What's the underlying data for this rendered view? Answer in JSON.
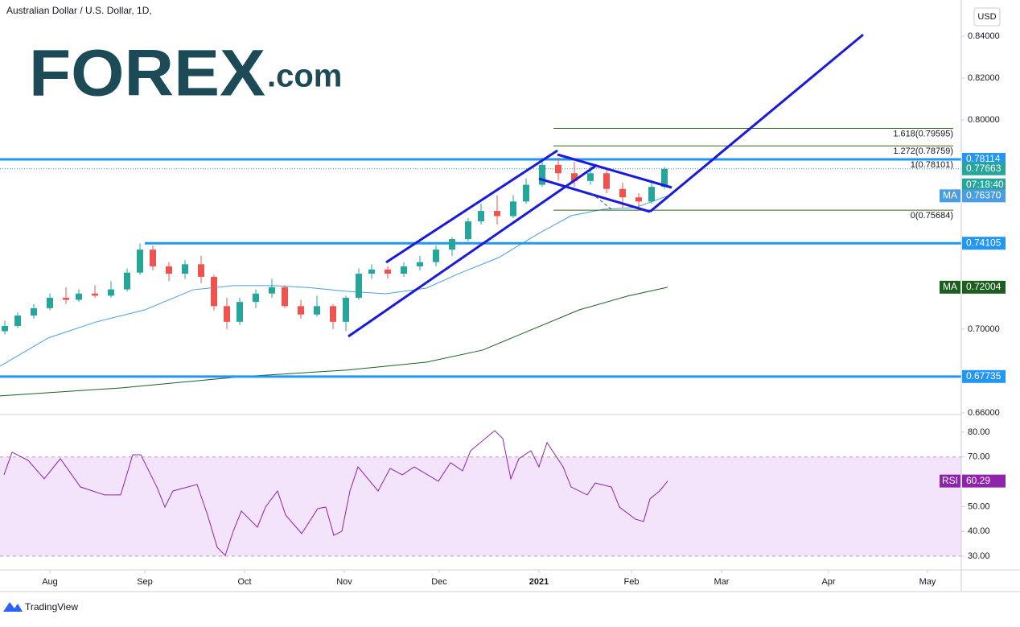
{
  "chart_data": [
    {
      "type": "candlestick",
      "title": "Australian Dollar / U.S. Dollar, 1D,",
      "currency": "USD",
      "logo": {
        "brand": "FOREX",
        "suffix": ".com"
      },
      "up_color": "#26a69a",
      "down_color": "#ef5350",
      "xlim": [
        -15.5,
        283.25
      ],
      "ylim": [
        0.6592,
        0.8573
      ],
      "yticks": [
        {
          "value": 0.84,
          "label": "0.84000"
        },
        {
          "value": 0.82,
          "label": "0.82000"
        },
        {
          "value": 0.8,
          "label": "0.80000"
        },
        {
          "value": 0.7,
          "label": "0.70000"
        },
        {
          "value": 0.66,
          "label": "0.66000"
        }
      ],
      "x": [
        -14,
        -10,
        -5,
        0,
        5,
        9,
        14,
        19,
        24,
        28,
        32,
        37,
        42,
        47,
        51,
        55,
        59,
        64,
        69,
        73,
        78,
        83,
        88,
        92,
        96,
        100,
        105,
        110,
        115,
        120,
        125,
        130,
        134,
        139,
        144,
        148,
        153,
        158,
        163,
        168,
        173,
        178,
        183,
        187,
        191
      ],
      "open": [
        0.699,
        0.7015,
        0.7065,
        0.71,
        0.715,
        0.714,
        0.717,
        0.716,
        0.719,
        0.727,
        0.738,
        0.73,
        0.7265,
        0.731,
        0.725,
        0.711,
        0.7035,
        0.713,
        0.717,
        0.72,
        0.711,
        0.707,
        0.711,
        0.7035,
        0.715,
        0.7265,
        0.7285,
        0.7265,
        0.73,
        0.732,
        0.738,
        0.743,
        0.7515,
        0.7565,
        0.754,
        0.761,
        0.769,
        0.7785,
        0.7745,
        0.7708,
        0.7745,
        0.767,
        0.763,
        0.761,
        0.768
      ],
      "high": [
        0.704,
        0.708,
        0.712,
        0.717,
        0.72,
        0.719,
        0.721,
        0.723,
        0.729,
        0.741,
        0.74,
        0.732,
        0.733,
        0.735,
        0.726,
        0.715,
        0.715,
        0.719,
        0.724,
        0.721,
        0.714,
        0.716,
        0.712,
        0.716,
        0.729,
        0.731,
        0.73,
        0.732,
        0.735,
        0.74,
        0.744,
        0.753,
        0.76,
        0.764,
        0.764,
        0.772,
        0.782,
        0.782,
        0.78,
        0.778,
        0.776,
        0.77,
        0.765,
        0.77,
        0.7775
      ],
      "low": [
        0.6975,
        0.7005,
        0.705,
        0.709,
        0.712,
        0.713,
        0.715,
        0.715,
        0.718,
        0.726,
        0.728,
        0.723,
        0.724,
        0.722,
        0.709,
        0.7,
        0.702,
        0.71,
        0.715,
        0.71,
        0.705,
        0.706,
        0.7,
        0.699,
        0.714,
        0.724,
        0.724,
        0.725,
        0.728,
        0.73,
        0.735,
        0.742,
        0.75,
        0.75,
        0.753,
        0.76,
        0.768,
        0.771,
        0.768,
        0.769,
        0.765,
        0.758,
        0.757,
        0.76,
        0.767
      ],
      "close": [
        0.7015,
        0.7065,
        0.71,
        0.715,
        0.714,
        0.717,
        0.716,
        0.719,
        0.727,
        0.738,
        0.73,
        0.7265,
        0.731,
        0.725,
        0.711,
        0.7035,
        0.713,
        0.717,
        0.72,
        0.711,
        0.707,
        0.711,
        0.7035,
        0.715,
        0.7265,
        0.7285,
        0.7265,
        0.73,
        0.732,
        0.738,
        0.743,
        0.7515,
        0.7565,
        0.754,
        0.761,
        0.769,
        0.7785,
        0.7745,
        0.7708,
        0.7745,
        0.767,
        0.763,
        0.761,
        0.768,
        0.7766
      ],
      "moving_averages": [
        {
          "name": "MA",
          "color": "#4a9de0",
          "x": [
            -15.5,
            -0.5,
            14.5,
            29.5,
            44.5,
            57,
            69.5,
            79.5,
            92,
            104.5,
            117,
            127,
            139.5,
            152,
            162,
            172,
            182,
            192
          ],
          "values": [
            0.6823,
            0.6958,
            0.7035,
            0.7092,
            0.7188,
            0.7208,
            0.7208,
            0.72,
            0.7181,
            0.7169,
            0.7196,
            0.7265,
            0.7342,
            0.7458,
            0.7542,
            0.7573,
            0.7581,
            0.7637
          ],
          "value_labels": [
            null,
            null,
            null,
            null,
            null,
            null,
            null,
            null,
            null,
            null,
            null,
            null,
            null,
            null,
            null,
            null,
            null,
            "0.76370"
          ]
        },
        {
          "name": "MA",
          "color": "#1b5e20",
          "x": [
            -15.5,
            22,
            59.5,
            92,
            117,
            134.5,
            149.5,
            164.5,
            179.5,
            192
          ],
          "values": [
            0.6681,
            0.6719,
            0.6773,
            0.6804,
            0.6842,
            0.69,
            0.6996,
            0.7092,
            0.7158,
            0.72004
          ]
        }
      ],
      "levels": [
        {
          "value": 0.78114,
          "color": "#2196f3"
        },
        {
          "value": 0.74105,
          "color": "#2196f3"
        },
        {
          "value": 0.67735,
          "color": "#2196f3"
        }
      ],
      "fibonacci": {
        "color": "#33691e",
        "levels": [
          {
            "value": 0.79595,
            "label": "1.618(0.79595)"
          },
          {
            "value": 0.78759,
            "label": "1.272(0.78759)"
          },
          {
            "value": 0.78101,
            "label": "1(0.78101)"
          },
          {
            "value": 0.75684,
            "label": "0(0.75684)"
          }
        ]
      },
      "last_price": {
        "value": 0.77663,
        "countdown": "07:18:40",
        "color": "#26a69a"
      }
    },
    {
      "type": "line",
      "xlim": [
        -15.5,
        283.25
      ],
      "ylim": [
        24.5,
        87.1
      ],
      "yticks": [
        {
          "value": 80,
          "label": "80.00"
        },
        {
          "value": 70,
          "label": "70.00"
        },
        {
          "value": 50,
          "label": "50.00"
        },
        {
          "value": 40,
          "label": "40.00"
        },
        {
          "value": 30,
          "label": "30.00"
        }
      ],
      "band": {
        "range": [
          30,
          70
        ],
        "color": "#f3e3fb"
      },
      "xticks": [
        {
          "value": 0,
          "label": "Aug"
        },
        {
          "value": 29.5,
          "label": "Sep"
        },
        {
          "value": 60.5,
          "label": "Oct"
        },
        {
          "value": 91.5,
          "label": "Nov"
        },
        {
          "value": 121,
          "label": "Dec"
        },
        {
          "value": 152,
          "label": "2021"
        },
        {
          "value": 180.75,
          "label": "Feb"
        },
        {
          "value": 208.75,
          "label": "Mar"
        },
        {
          "value": 242,
          "label": "Apr"
        },
        {
          "value": 272.75,
          "label": "May"
        }
      ],
      "series": [
        {
          "name": "RSI",
          "color": "#8e24aa",
          "x": [
            -14.25,
            -11.75,
            -6.75,
            -1.75,
            3.25,
            9.5,
            17,
            22,
            25.75,
            28.25,
            33.25,
            35.75,
            38.25,
            45.75,
            49,
            52,
            54.5,
            57,
            59.5,
            64.5,
            67,
            70.75,
            73.25,
            78.25,
            83.25,
            85.75,
            88.25,
            90.75,
            93.25,
            95.75,
            102,
            105.75,
            109.5,
            113.25,
            120.75,
            124.5,
            128.25,
            130.75,
            138.25,
            140.75,
            143.25,
            145.75,
            149.5,
            152,
            154.5,
            159.5,
            162,
            167,
            169.5,
            174.5,
            177,
            182,
            184.5,
            186.5,
            189.5,
            192
          ],
          "values": [
            62.8,
            71.9,
            68.6,
            61.2,
            69.3,
            57.9,
            54.7,
            54.7,
            70.9,
            70.9,
            57.9,
            49.8,
            56.3,
            58.9,
            46.6,
            33.6,
            30.3,
            40.1,
            48.2,
            41.7,
            49.8,
            56.3,
            46.6,
            39.1,
            49.2,
            49.8,
            38.4,
            40.1,
            56.3,
            66.0,
            56.3,
            65.4,
            62.8,
            66.0,
            60.2,
            67.7,
            64.4,
            72.5,
            80.6,
            77.4,
            61.2,
            69.3,
            72.5,
            66.0,
            75.8,
            66.0,
            57.9,
            54.7,
            59.5,
            57.9,
            49.8,
            44.9,
            44.0,
            53.1,
            56.3,
            60.29
          ]
        }
      ]
    }
  ],
  "footer": {
    "brand": "TradingView"
  }
}
